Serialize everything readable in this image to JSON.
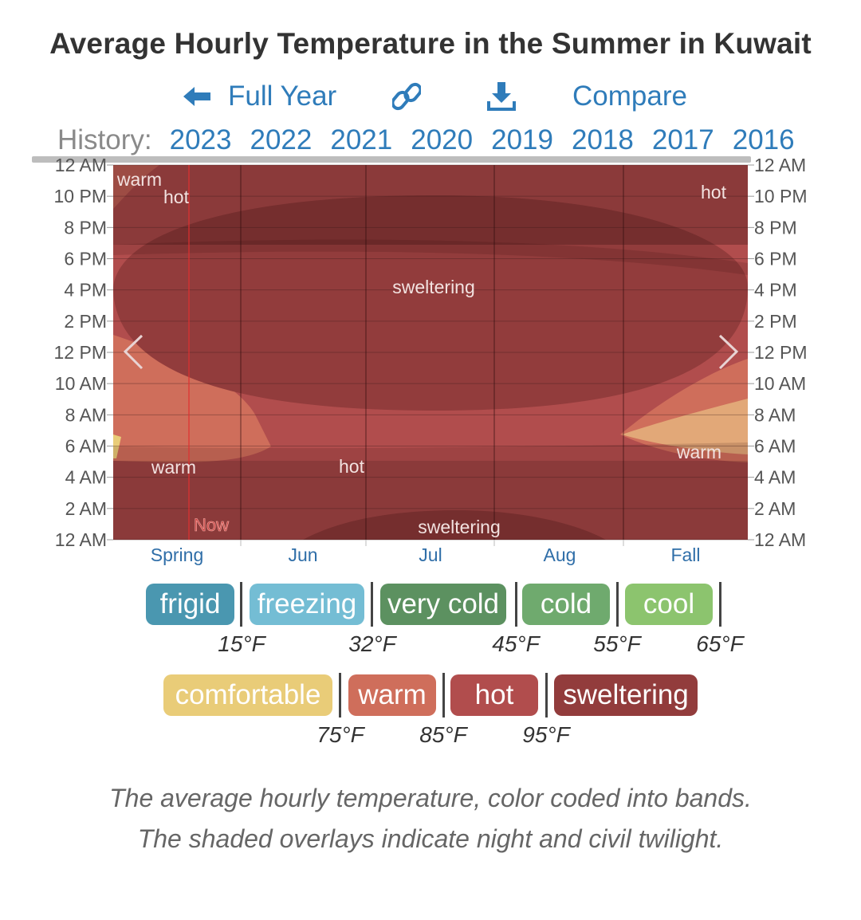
{
  "title": "Average Hourly Temperature in the Summer in Kuwait",
  "nav": {
    "full_year": "Full Year",
    "compare": "Compare",
    "link_icon": "link-icon",
    "download_icon": "download-icon",
    "back_icon": "arrow-left-icon"
  },
  "history": {
    "label": "History:",
    "years": [
      "2023",
      "2022",
      "2021",
      "2020",
      "2019",
      "2018",
      "2017",
      "2016"
    ]
  },
  "chart_data": {
    "type": "heatmap",
    "title": "Average Hourly Temperature in the Summer in Kuwait",
    "y_ticks": [
      "12 AM",
      "10 PM",
      "8 PM",
      "6 PM",
      "4 PM",
      "2 PM",
      "12 PM",
      "10 AM",
      "8 AM",
      "6 AM",
      "4 AM",
      "2 AM",
      "12 AM"
    ],
    "x_ticks": [
      "Spring",
      "Jun",
      "Jul",
      "Aug",
      "Fall"
    ],
    "bands": [
      {
        "name": "frigid",
        "upper_f": 15,
        "color": "#4a97b0"
      },
      {
        "name": "freezing",
        "upper_f": 32,
        "color": "#74bdd4"
      },
      {
        "name": "very cold",
        "upper_f": 45,
        "color": "#5c9160"
      },
      {
        "name": "cold",
        "upper_f": 55,
        "color": "#6faa6e"
      },
      {
        "name": "cool",
        "upper_f": 65,
        "color": "#8cc46e"
      },
      {
        "name": "comfortable",
        "upper_f": 75,
        "color": "#e9cc78"
      },
      {
        "name": "warm",
        "upper_f": 85,
        "color": "#cf6e5b"
      },
      {
        "name": "hot",
        "upper_f": 95,
        "color": "#b14d4d"
      },
      {
        "name": "sweltering",
        "upper_f": null,
        "color": "#923c3c"
      }
    ],
    "region_labels": [
      {
        "text": "warm",
        "where": "top-left"
      },
      {
        "text": "hot",
        "where": "top-left"
      },
      {
        "text": "hot",
        "where": "top-right"
      },
      {
        "text": "sweltering",
        "where": "center"
      },
      {
        "text": "warm",
        "where": "lower-left"
      },
      {
        "text": "hot",
        "where": "lower-center"
      },
      {
        "text": "warm",
        "where": "lower-right"
      },
      {
        "text": "sweltering",
        "where": "bottom-center"
      }
    ],
    "now_label": "Now",
    "prev_icon": "chevron-left-icon",
    "next_icon": "chevron-right-icon"
  },
  "legend": {
    "row1": [
      {
        "label": "frigid",
        "color": "#4a97b0"
      },
      {
        "label": "freezing",
        "color": "#74bdd4"
      },
      {
        "label": "very cold",
        "color": "#5c9160"
      },
      {
        "label": "cold",
        "color": "#6faa6e"
      },
      {
        "label": "cool",
        "color": "#8cc46e"
      }
    ],
    "row1_ticks": [
      "15°F",
      "32°F",
      "45°F",
      "55°F",
      "65°F"
    ],
    "row2": [
      {
        "label": "comfortable",
        "color": "#e9cc78"
      },
      {
        "label": "warm",
        "color": "#cf6e5b"
      },
      {
        "label": "hot",
        "color": "#b14d4d"
      },
      {
        "label": "sweltering",
        "color": "#923c3c"
      }
    ],
    "row2_ticks": [
      "75°F",
      "85°F",
      "95°F"
    ]
  },
  "caption": "The average hourly temperature, color coded into bands. The shaded overlays indicate night and civil twilight."
}
